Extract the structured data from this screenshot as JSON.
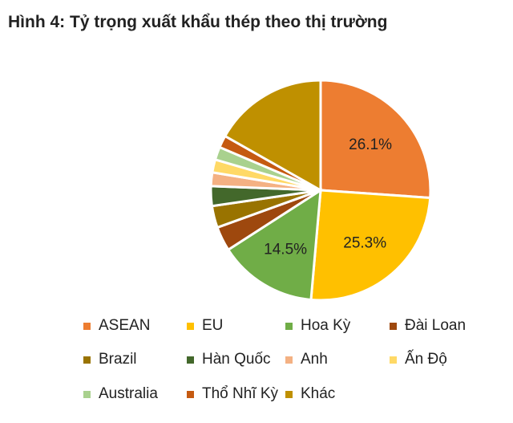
{
  "chart_data": {
    "type": "pie",
    "title": "Hình 4: Tỷ trọng xuất khẩu thép theo thị trường",
    "slices": [
      {
        "name": "ASEAN",
        "value": 26.1,
        "label": "26.1%",
        "color": "#ED7D31"
      },
      {
        "name": "EU",
        "value": 25.3,
        "label": "25.3%",
        "color": "#FFC000"
      },
      {
        "name": "Hoa Kỳ",
        "value": 14.5,
        "label": "14.5%",
        "color": "#70AD47"
      },
      {
        "name": "Đài Loan",
        "value": 3.6,
        "label": "",
        "color": "#9E480E"
      },
      {
        "name": "Brazil",
        "value": 3.2,
        "label": "",
        "color": "#997300"
      },
      {
        "name": "Hàn Quốc",
        "value": 2.9,
        "label": "",
        "color": "#43682B"
      },
      {
        "name": "Anh",
        "value": 2.0,
        "label": "",
        "color": "#F4B183"
      },
      {
        "name": "Ấn Độ",
        "value": 1.9,
        "label": "",
        "color": "#FFD966"
      },
      {
        "name": "Australia",
        "value": 1.9,
        "label": "",
        "color": "#A9D18E"
      },
      {
        "name": "Thổ Nhĩ Kỳ",
        "value": 1.8,
        "label": "",
        "color": "#C55A11"
      },
      {
        "name": "Khác",
        "value": 16.8,
        "label": "",
        "color": "#BF9000"
      }
    ],
    "start_angle_deg": 0,
    "direction": "clockwise",
    "legend_position": "bottom"
  }
}
